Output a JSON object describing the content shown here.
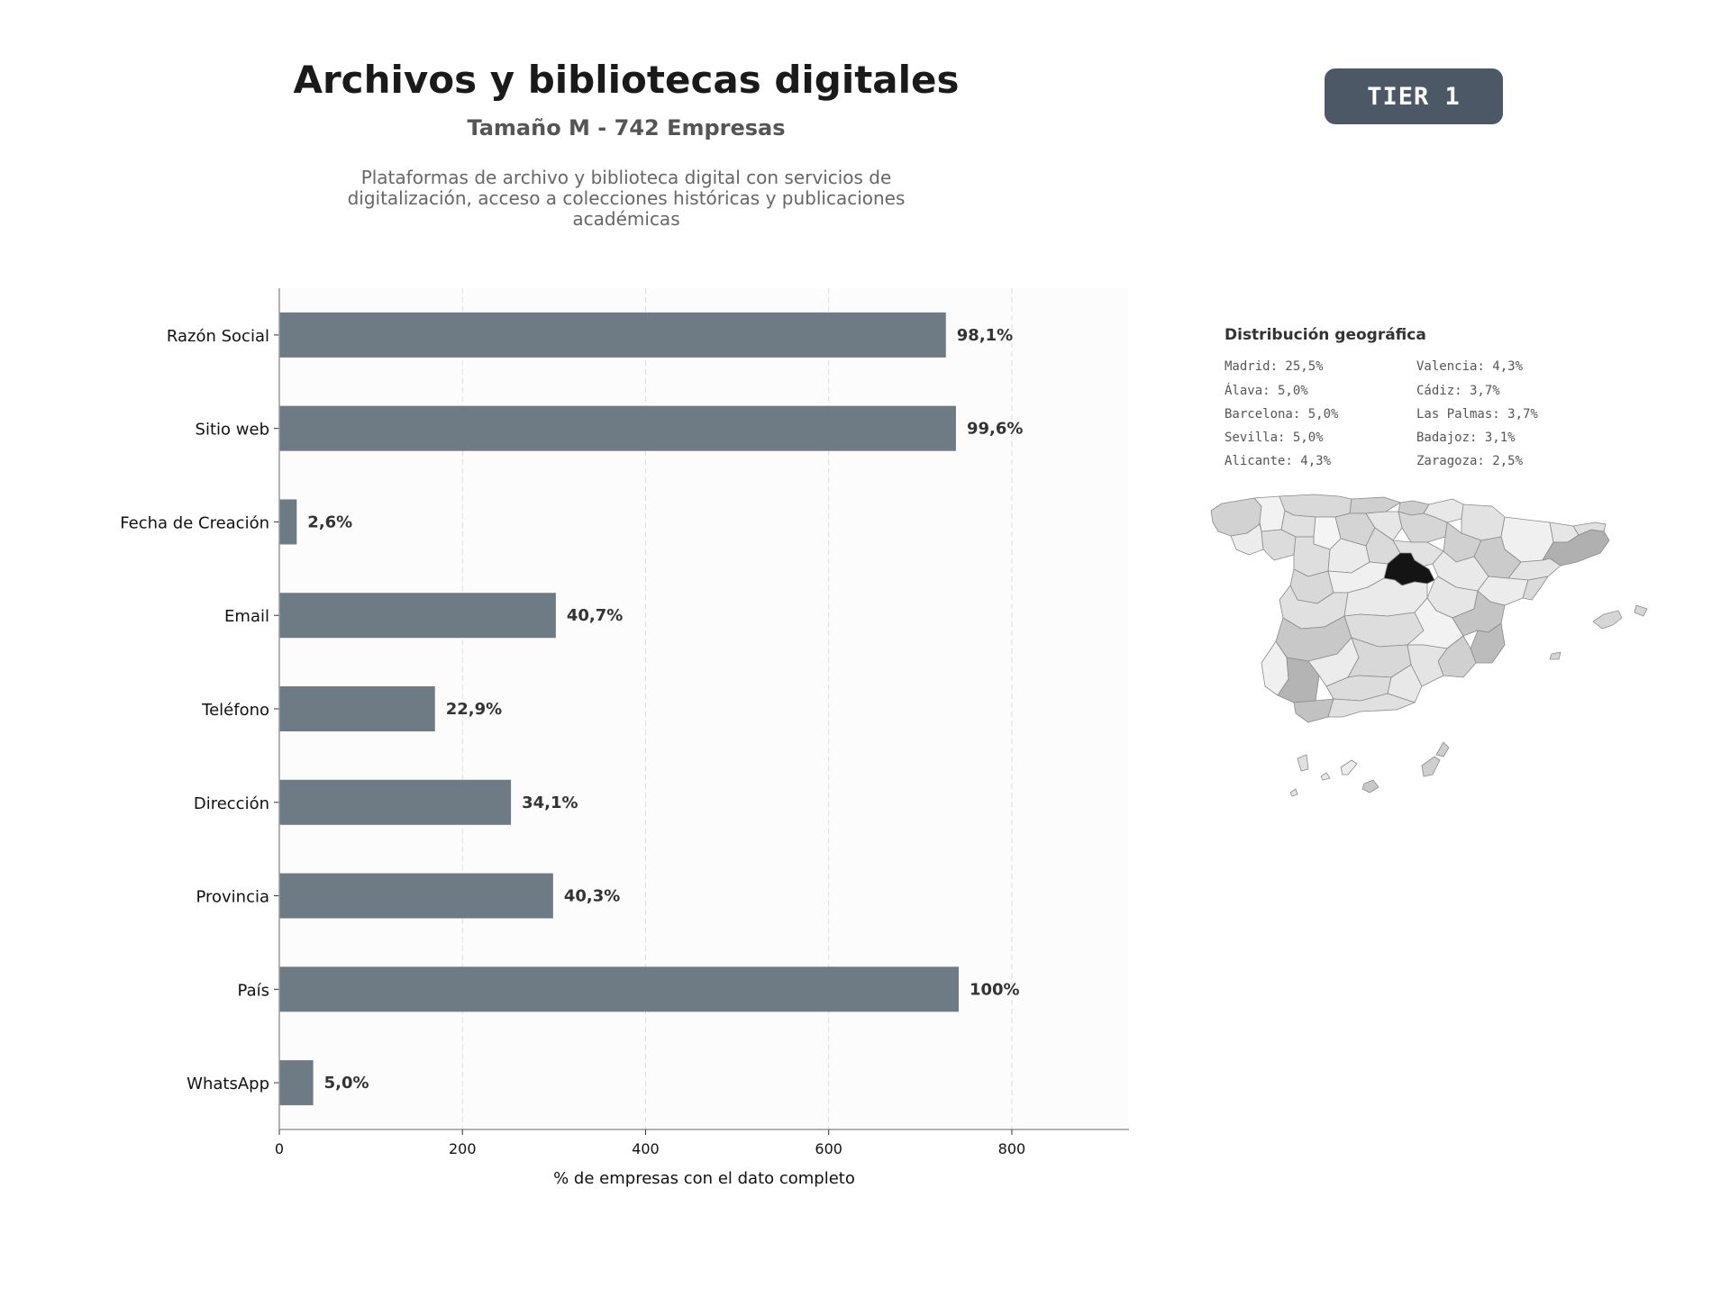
{
  "header": {
    "title": "Archivos y bibliotecas digitales",
    "subtitle": "Tamaño M - 742 Empresas",
    "description_lines": [
      "Plataformas de archivo y biblioteca digital con servicios de",
      "digitalización, acceso a colecciones históricas y publicaciones",
      "académicas"
    ]
  },
  "badge": {
    "label": "TIER 1"
  },
  "chart_data": {
    "type": "bar",
    "orientation": "horizontal",
    "categories": [
      "Razón Social",
      "Sitio web",
      "Fecha de Creación",
      "Email",
      "Teléfono",
      "Dirección",
      "Provincia",
      "País",
      "WhatsApp"
    ],
    "values": [
      728,
      739,
      19,
      302,
      170,
      253,
      299,
      742,
      37
    ],
    "data_labels": [
      "98,1%",
      "99,6%",
      "2,6%",
      "40,7%",
      "22,9%",
      "34,1%",
      "40,3%",
      "100%",
      "5,0%"
    ],
    "xlabel": "% de empresas con el dato completo",
    "ylabel": "",
    "xlim": [
      0,
      928
    ],
    "xticks": [
      0,
      200,
      400,
      600,
      800
    ],
    "grid": "vertical dashed",
    "bar_color": "#6e7a84"
  },
  "geo": {
    "title": "Distribución geográfica",
    "columns": [
      [
        "Madrid: 25,5%",
        "Álava: 5,0%",
        "Barcelona: 5,0%",
        "Sevilla: 5,0%",
        "Alicante: 4,3%"
      ],
      [
        "Valencia: 4,3%",
        "Cádiz: 3,7%",
        "Las Palmas: 3,7%",
        "Badajoz: 3,1%",
        "Zaragoza: 2,5%"
      ]
    ]
  }
}
